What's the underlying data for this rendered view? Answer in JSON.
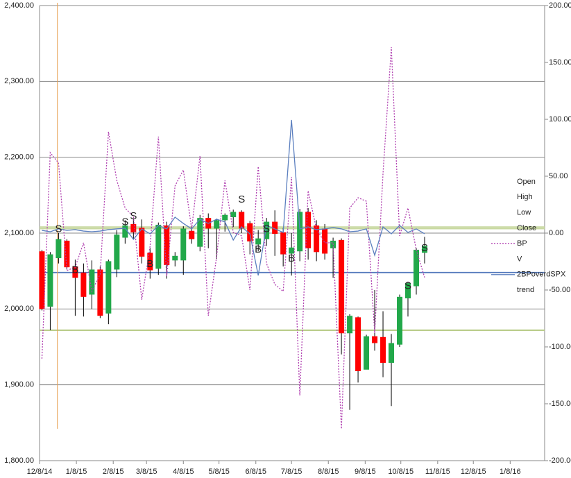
{
  "chart_data": {
    "type": "candlestick",
    "x": [
      "12/10/14",
      "12/17/14",
      "12/24/14",
      "12/31/14",
      "1/7/15",
      "1/14/15",
      "1/21/15",
      "1/28/15",
      "2/4/15",
      "2/11/15",
      "2/18/15",
      "2/25/15",
      "3/4/15",
      "3/11/15",
      "3/18/15",
      "3/25/15",
      "4/1/15",
      "4/8/15",
      "4/15/15",
      "4/22/15",
      "4/29/15",
      "5/6/15",
      "5/13/15",
      "5/20/15",
      "5/27/15",
      "6/3/15",
      "6/10/15",
      "6/17/15",
      "6/24/15",
      "7/1/15",
      "7/8/15",
      "7/15/15",
      "7/22/15",
      "7/29/15",
      "8/5/15",
      "8/12/15",
      "8/19/15",
      "8/26/15",
      "9/2/15",
      "9/9/15",
      "9/16/15",
      "9/23/15",
      "9/30/15",
      "10/7/15",
      "10/14/15",
      "10/21/15",
      "10/28/15"
    ],
    "open": [
      2076,
      2003,
      2067,
      2090,
      2056,
      2048,
      2019,
      2052,
      1994,
      2052,
      2094,
      2112,
      2107,
      2074,
      2053,
      2110,
      2064,
      2064,
      2103,
      2082,
      2120,
      2106,
      2117,
      2121,
      2128,
      2113,
      2085,
      2092,
      2115,
      2101,
      2073,
      2076,
      2128,
      2110,
      2106,
      2080,
      2091,
      1968,
      1989,
      1920,
      1964,
      1963,
      1929,
      1953,
      2014,
      2030,
      2074
    ],
    "high": [
      2078,
      2075,
      2100,
      2092,
      2065,
      2060,
      2064,
      2056,
      2065,
      2104,
      2117,
      2119,
      2118,
      2080,
      2114,
      2115,
      2075,
      2109,
      2108,
      2124,
      2126,
      2119,
      2126,
      2131,
      2130,
      2116,
      2104,
      2120,
      2130,
      2107,
      2100,
      2132,
      2133,
      2117,
      2112,
      2094,
      2093,
      1993,
      1990,
      1966,
      2025,
      1997,
      1967,
      2019,
      2036,
      2080,
      2095
    ],
    "low": [
      1998,
      1972,
      2060,
      2052,
      1991,
      1990,
      2000,
      1988,
      1980,
      2042,
      2086,
      2092,
      2060,
      2040,
      2045,
      2040,
      2056,
      2045,
      2086,
      2076,
      2080,
      2066,
      2102,
      2108,
      2100,
      2072,
      2076,
      2083,
      2070,
      2056,
      2044,
      2063,
      2065,
      2063,
      2065,
      2041,
      1940,
      1867,
      1903,
      1922,
      1945,
      1910,
      1872,
      1950,
      1990,
      2019,
      2060
    ],
    "close": [
      2000,
      2072,
      2092,
      2055,
      2041,
      2016,
      2052,
      1991,
      2063,
      2098,
      2110,
      2101,
      2069,
      2051,
      2111,
      2058,
      2070,
      2106,
      2092,
      2120,
      2106,
      2117,
      2124,
      2128,
      2106,
      2089,
      2093,
      2115,
      2099,
      2072,
      2081,
      2128,
      2080,
      2075,
      2073,
      2090,
      1968,
      1991,
      1918,
      1964,
      1955,
      1929,
      1955,
      2016,
      2034,
      2078,
      2083
    ],
    "up_color": "#22a84a",
    "down_color": "#ff0000",
    "series": [
      {
        "name": "BP",
        "color": "#b040b0",
        "dash": "2 2",
        "axis": "y2",
        "values": [
          -110.4,
          70.7,
          61.6,
          -32.9,
          -29.9,
          -8.5,
          -51.2,
          -36.0,
          89.0,
          46.3,
          22.0,
          14.6,
          -58.5,
          -11.6,
          84.8,
          -37.8,
          41.5,
          55.5,
          3.7,
          67.7,
          -72.6,
          -20.7,
          46.3,
          0.6,
          -2.4,
          -50.0,
          58.5,
          -26.8,
          -45.1,
          -51.2,
          49.4,
          -142.7,
          37.2,
          3.7,
          -8.5,
          -8.5,
          -172.0,
          22.0,
          31.1,
          28.0,
          -87.8,
          52.4,
          163.4,
          -2.4,
          22.0,
          -14.6,
          -39.0
        ]
      },
      {
        "name": "2BPoverdSPX",
        "color": "#5b7fbf",
        "dash": "",
        "axis": "y2",
        "values": [
          2.4,
          1.2,
          3.7,
          2.4,
          3.0,
          1.8,
          1.2,
          1.8,
          3.0,
          3.7,
          4.3,
          -5.5,
          3.7,
          -0.6,
          6.7,
          3.7,
          14.0,
          8.5,
          3.7,
          12.2,
          8.5,
          12.2,
          9.8,
          -6.1,
          5.5,
          -0.6,
          -37.2,
          6.7,
          3.7,
          0.6,
          99.4,
          3.7,
          5.5,
          3.0,
          3.7,
          4.9,
          3.7,
          1.2,
          1.8,
          3.7,
          -19.5,
          5.5,
          -0.6,
          6.7,
          0.6,
          3.7,
          -0.6
        ]
      }
    ],
    "levels": [
      {
        "value": 2108,
        "color": "#c8d8a0"
      },
      {
        "value": 2106,
        "color": "#c8d8a0"
      },
      {
        "value": 1972,
        "color": "#b8cc88"
      },
      {
        "value": 2048,
        "color": "#5b7fbf"
      }
    ],
    "vline": {
      "x": "12/23/14",
      "color": "#e8a050"
    },
    "annotations": [
      {
        "text": "S",
        "x": "12/24/14",
        "y": 2105,
        "color": "#000"
      },
      {
        "text": "B",
        "x": "1/7/15",
        "y": 2051,
        "color": "#000"
      },
      {
        "text": "S",
        "x": "2/18/15",
        "y": 2114,
        "color": "#000"
      },
      {
        "text": "S",
        "x": "2/25/15",
        "y": 2122,
        "color": "#000"
      },
      {
        "text": "B",
        "x": "3/11/15",
        "y": 2059,
        "color": "#000"
      },
      {
        "text": "S",
        "x": "5/27/15",
        "y": 2144,
        "color": "#000"
      },
      {
        "text": "B",
        "x": "6/10/15",
        "y": 2078,
        "color": "#22a84a"
      },
      {
        "text": "S",
        "x": "6/17/15",
        "y": 2105,
        "color": "#ff0000"
      },
      {
        "text": "B",
        "x": "7/8/15",
        "y": 2066,
        "color": "#22a84a"
      },
      {
        "text": "S",
        "x": "10/14/15",
        "y": 2030,
        "color": "#000"
      },
      {
        "text": "S",
        "x": "10/28/15",
        "y": 2080,
        "color": "#000"
      }
    ],
    "legend": [
      "Open",
      "High",
      "Low",
      "Close",
      "BP",
      "V",
      "2BPoverdSPX",
      "trend"
    ],
    "xlim": [
      "12/8/14",
      "2/6/16"
    ],
    "xticks": [
      "12/8/14",
      "1/8/15",
      "2/8/15",
      "3/8/15",
      "4/8/15",
      "5/8/15",
      "6/8/15",
      "7/8/15",
      "8/8/15",
      "9/8/15",
      "10/8/15",
      "11/8/15",
      "12/8/15",
      "1/8/16"
    ],
    "ylim": [
      1800,
      2400
    ],
    "yticks": [
      {
        "value": 1800,
        "label": "1,800.00"
      },
      {
        "value": 1900,
        "label": "1,900.00"
      },
      {
        "value": 2000,
        "label": "2,000.00"
      },
      {
        "value": 2100,
        "label": "2,100.00"
      },
      {
        "value": 2200,
        "label": "2,200.00"
      },
      {
        "value": 2300,
        "label": "2,300.00"
      },
      {
        "value": 2400,
        "label": "2,400.00"
      }
    ],
    "y2lim": [
      -200,
      200
    ],
    "y2ticks": [
      {
        "value": -200,
        "label": "-200.00"
      },
      {
        "value": -150,
        "label": "-150.00"
      },
      {
        "value": -100,
        "label": "-100.00"
      },
      {
        "value": -50,
        "label": "-50.00"
      },
      {
        "value": 0,
        "label": "0.00"
      },
      {
        "value": 50,
        "label": "50.00"
      },
      {
        "value": 100,
        "label": "100.00"
      },
      {
        "value": 150,
        "label": "150.00"
      },
      {
        "value": 200,
        "label": "200.00"
      }
    ],
    "grid": true
  }
}
